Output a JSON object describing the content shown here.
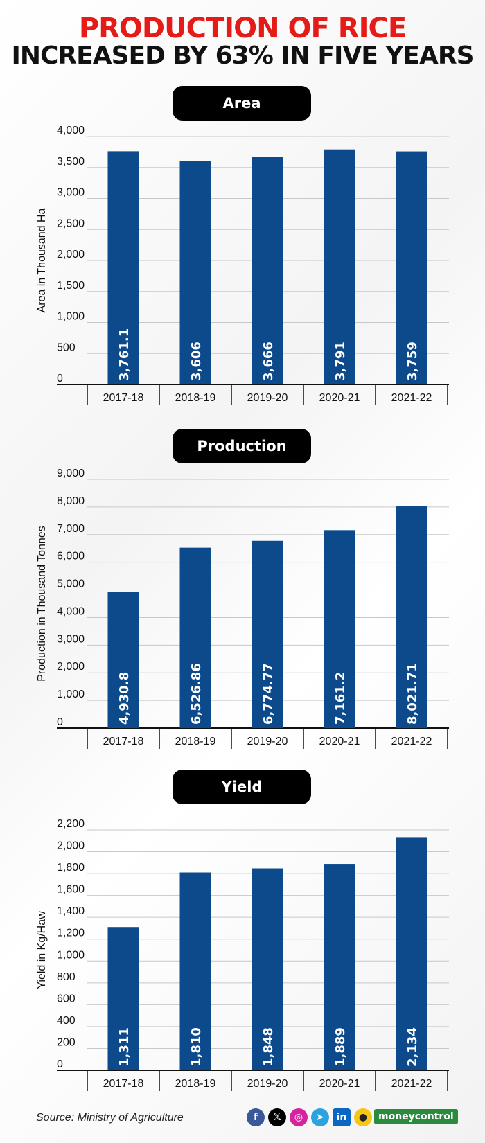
{
  "title": {
    "line1": "PRODUCTION OF RICE",
    "line2": "INCREASED BY 63% IN FIVE YEARS"
  },
  "chart_data": [
    {
      "type": "bar",
      "title": "Area",
      "ylabel": "Area in Thousand Ha",
      "categories": [
        "2017-18",
        "2018-19",
        "2019-20",
        "2020-21",
        "2021-22"
      ],
      "values": [
        3761.1,
        3606,
        3666,
        3791,
        3759
      ],
      "value_labels": [
        "3,761.1",
        "3,606",
        "3,666",
        "3,791",
        "3,759"
      ],
      "ylim": [
        0,
        4000
      ],
      "yticks": [
        0,
        500,
        1000,
        1500,
        2000,
        2500,
        3000,
        3500,
        4000
      ],
      "ytick_labels": [
        "0",
        "500",
        "1,000",
        "1,500",
        "2,000",
        "2,500",
        "3,000",
        "3,500",
        "4,000"
      ],
      "grid": true,
      "bar_color": "#0c4a8c"
    },
    {
      "type": "bar",
      "title": "Production",
      "ylabel": "Production in Thousand Tonnes",
      "categories": [
        "2017-18",
        "2018-19",
        "2019-20",
        "2020-21",
        "2021-22"
      ],
      "values": [
        4930.8,
        6526.86,
        6774.77,
        7161.2,
        8021.71
      ],
      "value_labels": [
        "4,930.8",
        "6,526.86",
        "6,774.77",
        "7,161.2",
        "8,021.71"
      ],
      "ylim": [
        0,
        9000
      ],
      "yticks": [
        0,
        1000,
        2000,
        3000,
        4000,
        5000,
        6000,
        7000,
        8000,
        9000
      ],
      "ytick_labels": [
        "0",
        "1,000",
        "2,000",
        "3,000",
        "4,000",
        "5,000",
        "6,000",
        "7,000",
        "8,000",
        "9,000"
      ],
      "grid": true,
      "bar_color": "#0c4a8c"
    },
    {
      "type": "bar",
      "title": "Yield",
      "ylabel": "Yield in Kg/Haw",
      "categories": [
        "2017-18",
        "2018-19",
        "2019-20",
        "2020-21",
        "2021-22"
      ],
      "values": [
        1311,
        1810,
        1848,
        1889,
        2134
      ],
      "value_labels": [
        "1,311",
        "1,810",
        "1,848",
        "1,889",
        "2,134"
      ],
      "ylim": [
        0,
        2200
      ],
      "yticks": [
        0,
        200,
        400,
        600,
        800,
        1000,
        1200,
        1400,
        1600,
        1800,
        2000,
        2200
      ],
      "ytick_labels": [
        "0",
        "200",
        "400",
        "600",
        "800",
        "1,000",
        "1,200",
        "1,400",
        "1,600",
        "1,800",
        "2,000",
        "2,200"
      ],
      "grid": true,
      "bar_color": "#0c4a8c"
    }
  ],
  "footer": {
    "source": "Source: Ministry of Agriculture",
    "brand": "moneycontrol",
    "social_icons": [
      "facebook-icon",
      "x-icon",
      "instagram-icon",
      "telegram-icon",
      "linkedin-icon",
      "koo-icon"
    ]
  }
}
